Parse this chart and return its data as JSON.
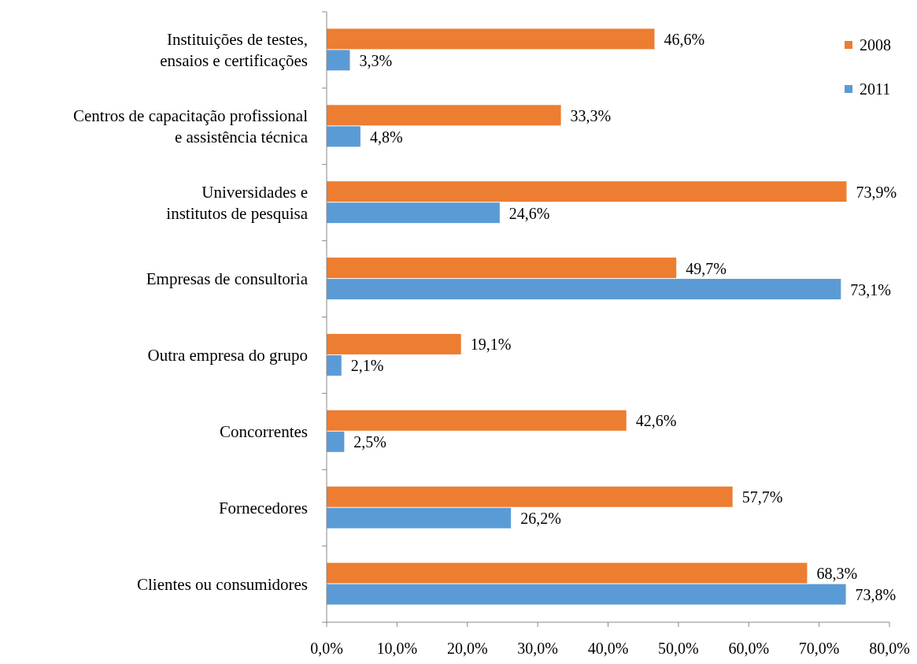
{
  "chart_data": {
    "type": "bar",
    "orientation": "horizontal",
    "categories": [
      "Instituições de testes,\nensaios e certificações",
      "Centros de capacitação profissional\ne assistência técnica",
      "Universidades e\ninstitutos de pesquisa",
      "Empresas de consultoria",
      "Outra empresa do grupo",
      "Concorrentes",
      "Fornecedores",
      "Clientes ou consumidores"
    ],
    "series": [
      {
        "name": "2008",
        "color": "#ed7d31",
        "values": [
          46.6,
          33.3,
          73.9,
          49.7,
          19.1,
          42.6,
          57.7,
          68.3
        ],
        "value_labels": [
          "46,6%",
          "33,3%",
          "73,9%",
          "49,7%",
          "19,1%",
          "42,6%",
          "57,7%",
          "68,3%"
        ]
      },
      {
        "name": "2011",
        "color": "#5b9bd5",
        "values": [
          3.3,
          4.8,
          24.6,
          73.1,
          2.1,
          2.5,
          26.2,
          73.8
        ],
        "value_labels": [
          "3,3%",
          "4,8%",
          "24,6%",
          "73,1%",
          "2,1%",
          "2,5%",
          "26,2%",
          "73,8%"
        ]
      }
    ],
    "xlim": [
      0,
      80
    ],
    "xticks": [
      {
        "value": 0,
        "label": "0,0%"
      },
      {
        "value": 10,
        "label": "10,0%"
      },
      {
        "value": 20,
        "label": "20,0%"
      },
      {
        "value": 30,
        "label": "30,0%"
      },
      {
        "value": 40,
        "label": "40,0%"
      },
      {
        "value": 50,
        "label": "50,0%"
      },
      {
        "value": 60,
        "label": "60,0%"
      },
      {
        "value": 70,
        "label": "70,0%"
      },
      {
        "value": 80,
        "label": "80,0%"
      }
    ],
    "grid": false,
    "legend": "top right"
  }
}
